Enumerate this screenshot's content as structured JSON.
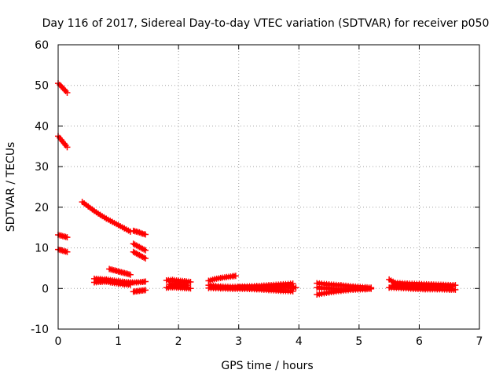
{
  "chart_data": {
    "type": "scatter",
    "title": "Day 116 of 2017, Sidereal Day-to-day VTEC variation (SDTVAR) for receiver p050",
    "xlabel": "GPS time / hours",
    "ylabel": "SDTVAR / TECUs",
    "xlim": [
      0,
      7
    ],
    "ylim": [
      -10,
      60
    ],
    "xticks": [
      "0",
      "1",
      "2",
      "3",
      "4",
      "5",
      "6",
      "7"
    ],
    "yticks": [
      "-10",
      "0",
      "10",
      "20",
      "30",
      "40",
      "50",
      "60"
    ],
    "grid": true,
    "marker": "plus",
    "color": "#ff0000",
    "segments": [
      {
        "x": [
          0.0,
          0.05,
          0.1,
          0.15
        ],
        "y": [
          50.5,
          49.8,
          49.0,
          48.2
        ]
      },
      {
        "x": [
          0.0,
          0.05,
          0.1,
          0.15
        ],
        "y": [
          37.5,
          36.6,
          35.7,
          34.8
        ]
      },
      {
        "x": [
          0.0,
          0.05,
          0.1,
          0.15
        ],
        "y": [
          13.2,
          13.0,
          12.8,
          12.6
        ]
      },
      {
        "x": [
          0.0,
          0.05,
          0.1,
          0.15
        ],
        "y": [
          9.6,
          9.4,
          9.2,
          9.0
        ]
      },
      {
        "x": [
          0.4,
          0.5,
          0.6,
          0.7,
          0.8,
          0.9,
          1.0,
          1.1,
          1.2
        ],
        "y": [
          21.3,
          20.2,
          19.1,
          18.1,
          17.2,
          16.4,
          15.6,
          14.8,
          14.0
        ]
      },
      {
        "x": [
          1.25,
          1.3,
          1.35,
          1.4,
          1.45
        ],
        "y": [
          14.2,
          14.0,
          13.8,
          13.5,
          13.3
        ]
      },
      {
        "x": [
          1.25,
          1.3,
          1.35,
          1.4,
          1.45
        ],
        "y": [
          11.0,
          10.6,
          10.2,
          9.8,
          9.4
        ]
      },
      {
        "x": [
          1.25,
          1.3,
          1.35,
          1.4,
          1.45
        ],
        "y": [
          9.0,
          8.6,
          8.2,
          7.8,
          7.4
        ]
      },
      {
        "x": [
          0.85,
          0.9,
          0.95,
          1.0,
          1.05,
          1.1,
          1.15,
          1.2
        ],
        "y": [
          4.8,
          4.6,
          4.4,
          4.2,
          4.0,
          3.8,
          3.6,
          3.4
        ]
      },
      {
        "x": [
          0.6,
          0.7,
          0.8,
          0.9,
          1.0,
          1.1,
          1.2,
          1.3,
          1.4,
          1.45
        ],
        "y": [
          2.4,
          2.3,
          2.2,
          2.0,
          1.8,
          1.6,
          1.5,
          1.5,
          1.6,
          1.7
        ]
      },
      {
        "x": [
          0.6,
          0.7,
          0.8,
          0.9,
          1.0,
          1.1,
          1.2
        ],
        "y": [
          1.5,
          1.6,
          1.7,
          1.4,
          1.2,
          1.0,
          0.9
        ]
      },
      {
        "x": [
          1.25,
          1.3,
          1.35,
          1.4,
          1.45
        ],
        "y": [
          -0.8,
          -0.7,
          -0.6,
          -0.5,
          -0.4
        ]
      },
      {
        "x": [
          1.8,
          1.9,
          2.0,
          2.1,
          2.2
        ],
        "y": [
          2.0,
          2.1,
          1.9,
          1.8,
          1.6
        ]
      },
      {
        "x": [
          1.8,
          1.9,
          2.0,
          2.1,
          2.2
        ],
        "y": [
          0.2,
          0.3,
          0.2,
          0.1,
          0.0
        ]
      },
      {
        "x": [
          1.85,
          1.95,
          2.05,
          2.15
        ],
        "y": [
          1.0,
          1.1,
          0.9,
          0.8
        ]
      },
      {
        "x": [
          2.5,
          2.6,
          2.7,
          2.8,
          2.9,
          2.95
        ],
        "y": [
          1.9,
          2.3,
          2.6,
          2.8,
          3.0,
          3.1
        ]
      },
      {
        "x": [
          2.5,
          2.7,
          2.9,
          3.1,
          3.3,
          3.5,
          3.7,
          3.9
        ],
        "y": [
          0.8,
          0.5,
          0.4,
          0.5,
          0.6,
          0.8,
          1.0,
          1.2
        ]
      },
      {
        "x": [
          2.5,
          2.7,
          2.9,
          3.1,
          3.3,
          3.5,
          3.7,
          3.9
        ],
        "y": [
          0.1,
          0.0,
          -0.1,
          -0.1,
          -0.2,
          -0.4,
          -0.6,
          -0.7
        ]
      },
      {
        "x": [
          3.0,
          3.2,
          3.4,
          3.6,
          3.8,
          3.95
        ],
        "y": [
          0.3,
          0.2,
          0.0,
          0.2,
          0.4,
          0.2
        ]
      },
      {
        "x": [
          4.3,
          4.5,
          4.7,
          4.9,
          5.1,
          5.2
        ],
        "y": [
          1.3,
          1.0,
          0.8,
          0.5,
          0.3,
          0.2
        ]
      },
      {
        "x": [
          4.3,
          4.5,
          4.7,
          4.9,
          5.1,
          5.2
        ],
        "y": [
          -1.5,
          -1.0,
          -0.6,
          -0.3,
          -0.2,
          -0.1
        ]
      },
      {
        "x": [
          4.3,
          4.5,
          4.7,
          4.9,
          5.1
        ],
        "y": [
          0.2,
          0.0,
          -0.2,
          -0.1,
          0.0
        ]
      },
      {
        "x": [
          5.5,
          5.6,
          5.8,
          6.0,
          6.2,
          6.4,
          6.6
        ],
        "y": [
          2.2,
          1.4,
          1.2,
          1.1,
          1.0,
          0.9,
          0.8
        ]
      },
      {
        "x": [
          5.5,
          5.7,
          5.9,
          6.1,
          6.3,
          6.5,
          6.6
        ],
        "y": [
          0.2,
          0.1,
          -0.1,
          -0.2,
          -0.2,
          -0.3,
          -0.3
        ]
      },
      {
        "x": [
          5.55,
          5.75,
          5.95,
          6.15,
          6.35,
          6.55
        ],
        "y": [
          0.8,
          0.6,
          0.4,
          0.5,
          0.6,
          0.5
        ]
      }
    ]
  }
}
